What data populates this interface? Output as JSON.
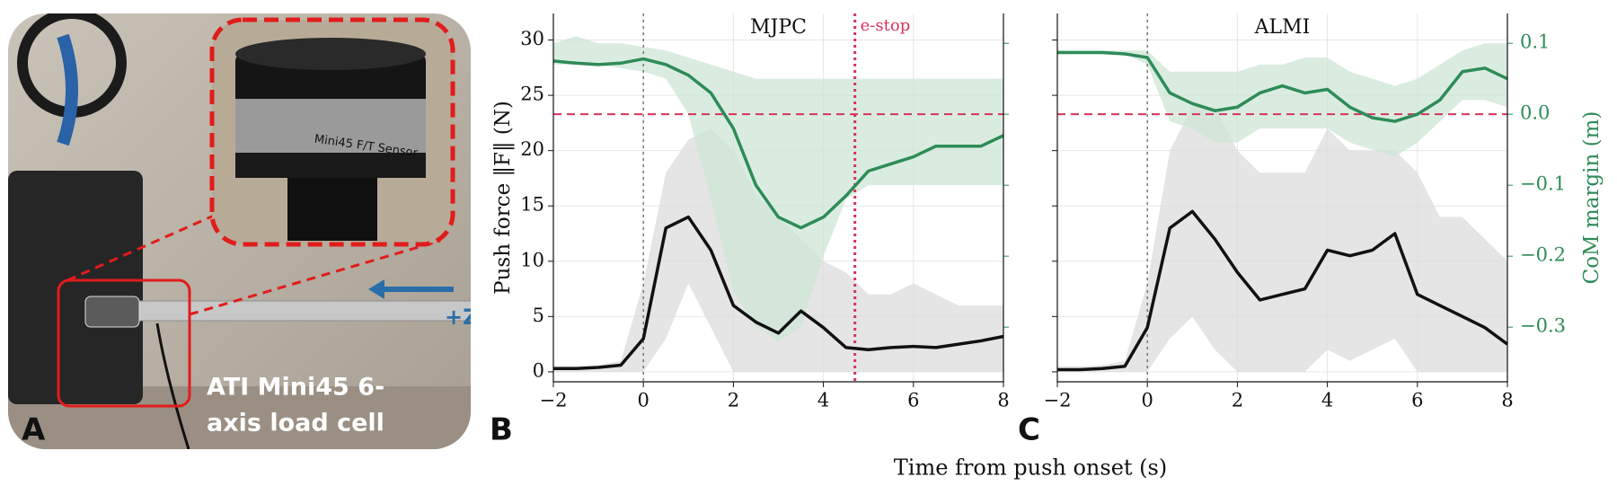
{
  "panel_labels": [
    "A",
    "B",
    "C"
  ],
  "photo": {
    "sensor_label": "Mini45 F/T Sensor",
    "axis_label": "+Z",
    "caption": [
      "ATI Mini45 6-",
      "axis load cell"
    ]
  },
  "xlabel": "Time from push onset (s)",
  "chart_data": [
    {
      "type": "line",
      "title": "MJPC",
      "ylabel": "Push force ‖F‖ (N)",
      "x": [
        -2,
        -1.5,
        -1,
        -0.5,
        0,
        0.5,
        1,
        1.5,
        2,
        2.5,
        3,
        3.5,
        4,
        4.5,
        5,
        5.5,
        6,
        6.5,
        7,
        7.5,
        8
      ],
      "xlim": [
        -2,
        8
      ],
      "xticks": [
        {
          "value": -2,
          "label": "−2"
        },
        0,
        2,
        4,
        6,
        8
      ],
      "ylim": [
        -0.9,
        32.4
      ],
      "yticks": [
        0,
        5,
        10,
        15,
        20,
        25,
        30
      ],
      "ytick_labels": true,
      "y2lim": [
        -0.377,
        0.142
      ],
      "y2ticks": [
        {
          "value": -0.3,
          "label": "−0.3"
        },
        {
          "value": -0.2,
          "label": "−0.2"
        },
        {
          "value": -0.1,
          "label": "−0.1"
        },
        {
          "value": 0,
          "label": "0.0"
        },
        0.1
      ],
      "y2tick_labels": false,
      "grid": true,
      "bands": [
        {
          "color": "#dcdcdc",
          "lower": [
            0,
            0,
            0,
            0,
            0,
            3,
            8,
            4,
            0,
            0,
            0,
            0,
            0,
            0,
            0,
            0,
            0,
            0,
            0,
            0,
            0
          ],
          "upper": [
            0.5,
            0.5,
            0.6,
            1,
            8,
            18,
            21,
            22,
            20,
            16,
            14,
            12,
            10,
            9,
            7,
            7,
            8,
            7,
            6,
            6,
            6
          ]
        },
        {
          "axis": "y2",
          "color": "#cde6d5",
          "lower": [
            0.07,
            0.07,
            0.07,
            0.065,
            0.06,
            0.05,
            0,
            -0.12,
            -0.25,
            -0.3,
            -0.32,
            -0.3,
            -0.2,
            -0.12,
            -0.1,
            -0.1,
            -0.1,
            -0.1,
            -0.1,
            -0.1,
            -0.1
          ],
          "upper": [
            0.1,
            0.11,
            0.1,
            0.1,
            0.095,
            0.09,
            0.08,
            0.07,
            0.06,
            0.05,
            0.05,
            0.05,
            0.05,
            0.05,
            0.05,
            0.05,
            0.05,
            0.05,
            0.05,
            0.05,
            0.05
          ]
        }
      ],
      "series": [
        {
          "color": "#111111",
          "values": [
            0.3,
            0.3,
            0.4,
            0.6,
            3,
            13,
            14,
            11,
            6,
            4.5,
            3.5,
            5.5,
            4,
            2.2,
            2,
            2.2,
            2.3,
            2.2,
            2.5,
            2.8,
            3.2
          ]
        },
        {
          "axis": "y2",
          "color": "#2e8b57",
          "values": [
            0.075,
            0.072,
            0.07,
            0.072,
            0.078,
            0.07,
            0.055,
            0.03,
            -0.02,
            -0.1,
            -0.145,
            -0.16,
            -0.145,
            -0.115,
            -0.08,
            -0.07,
            -0.06,
            -0.045,
            -0.045,
            -0.045,
            -0.03
          ]
        }
      ],
      "vlines": [
        {
          "x": 0,
          "color": "#777777",
          "style": "dotted"
        },
        {
          "x": 4.7,
          "color": "#d6335a",
          "style": "dotted",
          "label": "e-stop"
        }
      ],
      "hlines": [
        {
          "value": 0,
          "axis": "y2",
          "color": "#d6335a",
          "style": "dashed"
        }
      ]
    },
    {
      "type": "line",
      "title": "ALMI",
      "y2label": "CoM margin (m)",
      "x": [
        -2,
        -1.5,
        -1,
        -0.5,
        0,
        0.5,
        1,
        1.5,
        2,
        2.5,
        3,
        3.5,
        4,
        4.5,
        5,
        5.5,
        6,
        6.5,
        7,
        7.5,
        8
      ],
      "xlim": [
        -2,
        8
      ],
      "xticks": [
        {
          "value": -2,
          "label": "−2"
        },
        0,
        2,
        4,
        6,
        8
      ],
      "ylim": [
        -0.9,
        32.4
      ],
      "yticks": [
        0,
        5,
        10,
        15,
        20,
        25,
        30
      ],
      "ytick_labels": false,
      "y2lim": [
        -0.377,
        0.142
      ],
      "y2ticks": [
        {
          "value": -0.3,
          "label": "−0.3"
        },
        {
          "value": -0.2,
          "label": "−0.2"
        },
        {
          "value": -0.1,
          "label": "−0.1"
        },
        {
          "value": 0,
          "label": "0.0"
        },
        0.1
      ],
      "y2tick_labels": true,
      "y2color": "#2e8b57",
      "grid": true,
      "bands": [
        {
          "color": "#dcdcdc",
          "lower": [
            0,
            0,
            0,
            0,
            0,
            3,
            5,
            2,
            0,
            0,
            0,
            0,
            2,
            1,
            2,
            3,
            0,
            0,
            0,
            0,
            0
          ],
          "upper": [
            0.5,
            0.5,
            0.6,
            1,
            8,
            20,
            24,
            24,
            20,
            18,
            18,
            18,
            22,
            20,
            20,
            20,
            18,
            14,
            14,
            12,
            10
          ]
        },
        {
          "axis": "y2",
          "color": "#cde6d5",
          "lower": [
            0.085,
            0.085,
            0.085,
            0.085,
            0.07,
            -0.01,
            -0.02,
            -0.04,
            -0.04,
            -0.02,
            -0.02,
            -0.02,
            -0.02,
            -0.04,
            -0.05,
            -0.06,
            -0.04,
            -0.01,
            0.02,
            0.02,
            0.01
          ],
          "upper": [
            0.09,
            0.09,
            0.09,
            0.09,
            0.09,
            0.06,
            0.06,
            0.06,
            0.06,
            0.07,
            0.07,
            0.08,
            0.08,
            0.06,
            0.05,
            0.04,
            0.05,
            0.07,
            0.09,
            0.1,
            0.1
          ]
        }
      ],
      "series": [
        {
          "color": "#111111",
          "values": [
            0.2,
            0.2,
            0.3,
            0.5,
            4,
            13,
            14.5,
            12,
            9,
            6.5,
            7,
            7.5,
            11,
            10.5,
            11,
            12.5,
            7,
            6,
            5,
            4,
            2.5
          ]
        },
        {
          "axis": "y2",
          "color": "#2e8b57",
          "values": [
            0.087,
            0.087,
            0.087,
            0.085,
            0.08,
            0.03,
            0.015,
            0.005,
            0.01,
            0.03,
            0.04,
            0.03,
            0.035,
            0.01,
            -0.005,
            -0.01,
            0,
            0.02,
            0.06,
            0.065,
            0.05
          ]
        }
      ],
      "vlines": [
        {
          "x": 0,
          "color": "#777777",
          "style": "dotted"
        }
      ],
      "hlines": [
        {
          "value": 0,
          "axis": "y2",
          "color": "#d6335a",
          "style": "dashed"
        }
      ]
    }
  ]
}
